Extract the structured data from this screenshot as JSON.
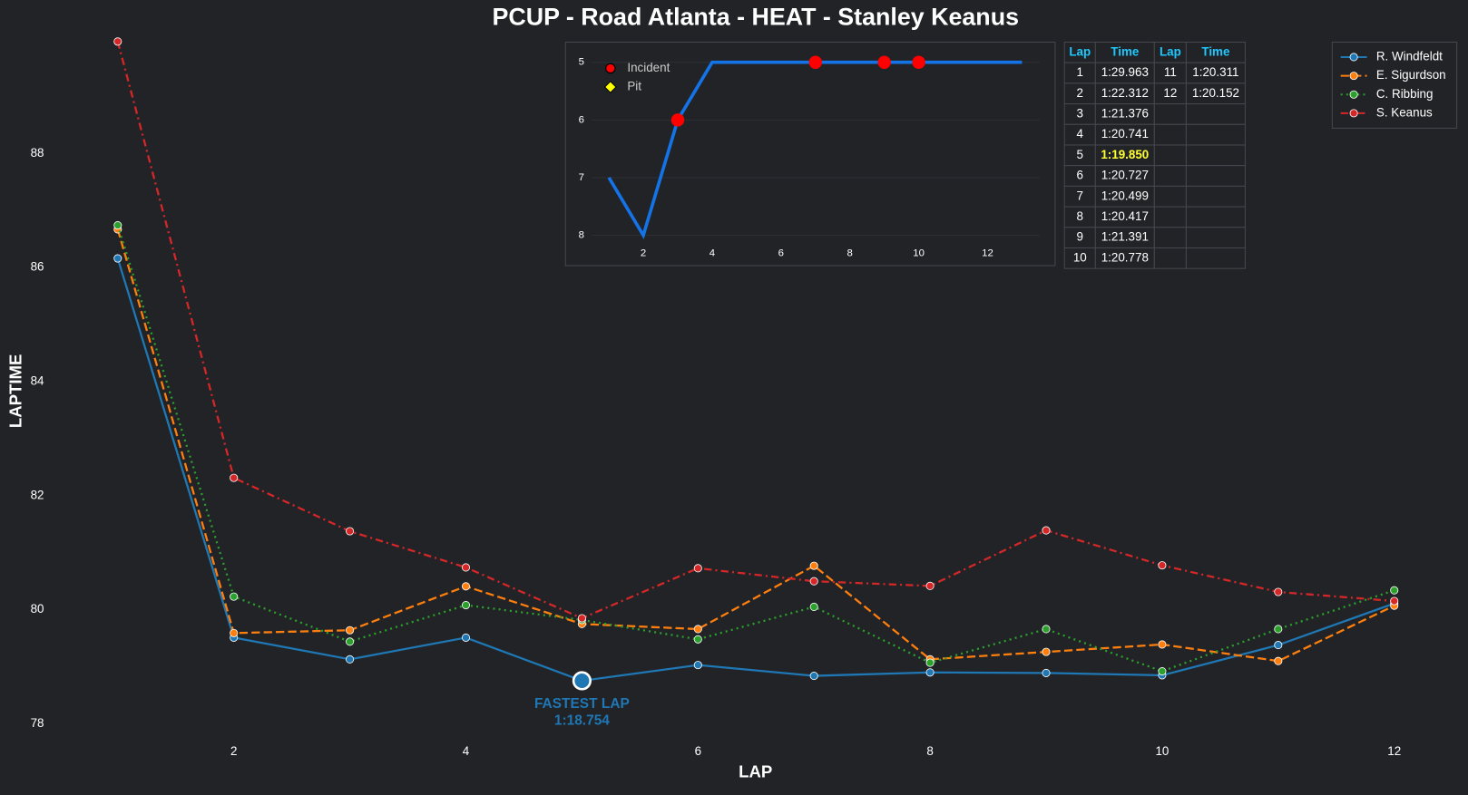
{
  "chart_data": [
    {
      "type": "line",
      "title": "PCUP - Road Atlanta - HEAT - Stanley Keanus",
      "xlabel": "LAP",
      "ylabel": "LAPTIME",
      "x": [
        1,
        2,
        3,
        4,
        5,
        6,
        7,
        8,
        9,
        10,
        11,
        12
      ],
      "series": [
        {
          "name": "R. Windfeldt",
          "color": "#1f77b4",
          "linestyle": "solid",
          "values": [
            86.16,
            79.51,
            79.13,
            79.51,
            78.754,
            79.03,
            78.84,
            78.9,
            78.89,
            78.85,
            79.38,
            80.11
          ]
        },
        {
          "name": "E. Sigurdson",
          "color": "#ff7f0e",
          "linestyle": "dashed",
          "values": [
            86.67,
            79.59,
            79.64,
            80.41,
            79.75,
            79.66,
            80.77,
            79.13,
            79.26,
            79.39,
            79.1,
            80.07
          ]
        },
        {
          "name": "C. Ribbing",
          "color": "#2ca02c",
          "linestyle": "dotted",
          "values": [
            86.74,
            80.23,
            79.44,
            80.08,
            79.82,
            79.48,
            80.05,
            79.07,
            79.66,
            78.92,
            79.66,
            80.34
          ]
        },
        {
          "name": "S. Keanus",
          "color": "#d62728",
          "linestyle": "dashdot",
          "values": [
            89.963,
            82.312,
            81.376,
            80.741,
            79.85,
            80.727,
            80.499,
            80.417,
            81.391,
            80.778,
            80.311,
            80.152
          ]
        }
      ],
      "xlim": [
        0.55,
        12.45
      ],
      "ylim": [
        77.7,
        90.1
      ],
      "xticks": [
        2,
        4,
        6,
        8,
        10,
        12
      ],
      "yticks": [
        78,
        80,
        82,
        84,
        86,
        88
      ],
      "legend": "upper right",
      "annotation": {
        "lines": [
          "FASTEST LAP",
          "1:18.754"
        ],
        "x": 5,
        "y": 78.754,
        "color": "#1f77b4"
      }
    },
    {
      "type": "line",
      "x": [
        1,
        2,
        3,
        4,
        5,
        6,
        7,
        8,
        9,
        10,
        11,
        12,
        13
      ],
      "values": [
        7,
        8,
        6,
        5,
        5,
        5,
        5,
        5,
        5,
        5,
        5,
        5,
        5
      ],
      "color": "#1473e6",
      "xlim": [
        0.5,
        13.5
      ],
      "ylim": [
        8.3,
        4.65
      ],
      "xticks": [
        2,
        4,
        6,
        8,
        10,
        12
      ],
      "yticks": [
        5,
        6,
        7,
        8
      ],
      "grid": true,
      "incidents": {
        "x": [
          3,
          7,
          9,
          10
        ],
        "values": [
          6,
          5,
          5,
          5
        ],
        "color": "#ff0000"
      },
      "legend": [
        {
          "label": "Incident",
          "color": "#ff0000",
          "marker": "circle"
        },
        {
          "label": "Pit",
          "color": "#ffff00",
          "marker": "diamond"
        }
      ]
    }
  ],
  "table": {
    "header": [
      "Lap",
      "Time",
      "Lap",
      "Time"
    ],
    "highlight_row": 4,
    "rows": [
      [
        1,
        "1:29.963",
        11,
        "1:20.311"
      ],
      [
        2,
        "1:22.312",
        12,
        "1:20.152"
      ],
      [
        3,
        "1:21.376",
        null,
        null
      ],
      [
        4,
        "1:20.741",
        null,
        null
      ],
      [
        5,
        "1:19.850",
        null,
        null
      ],
      [
        6,
        "1:20.727",
        null,
        null
      ],
      [
        7,
        "1:20.499",
        null,
        null
      ],
      [
        8,
        "1:20.417",
        null,
        null
      ],
      [
        9,
        "1:21.391",
        null,
        null
      ],
      [
        10,
        "1:20.778",
        null,
        null
      ]
    ]
  }
}
